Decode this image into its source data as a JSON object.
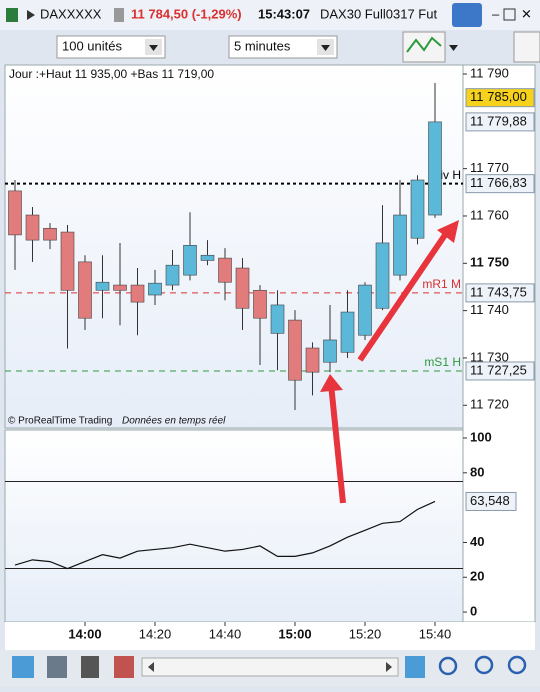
{
  "window": {
    "symbol": "DAXXXXX",
    "quote": "11 784,50 (-1,29%)",
    "time": "15:43:07",
    "contract": "DAX30 Full0317 Fut"
  },
  "toolbar": {
    "quantity": "100 unités",
    "period": "5 minutes"
  },
  "chart_header": "Jour :+Haut 11 935,00 +Bas 11 719,00",
  "footer": {
    "brand": "© ProRealTime Trading",
    "feed": "Données en temps réel"
  },
  "chart_data": [
    {
      "type": "candlestick",
      "categories": [
        null,
        null,
        null,
        null,
        "14:00",
        null,
        null,
        null,
        "14:20",
        null,
        null,
        null,
        "14:40",
        null,
        null,
        null,
        "15:00",
        null,
        null,
        null,
        "15:20",
        null,
        null,
        null,
        "15:40"
      ],
      "bold_categories": [
        4,
        16
      ],
      "open": [
        11765.3,
        11760.2,
        11757.4,
        11756.6,
        11750.3,
        11744.3,
        11745.4,
        11745.4,
        11743.3,
        11745.4,
        11747.5,
        11750.6,
        11751.1,
        11749,
        11744.3,
        11735.2,
        11738,
        11732.1,
        11729.1,
        11731.2,
        11734.8,
        11740.5,
        11747.5,
        11755.3,
        11760.2
      ],
      "high": [
        11767.6,
        11761.9,
        11758.5,
        11758.1,
        11751.7,
        11751.7,
        11754.3,
        11749,
        11748.6,
        11752.8,
        11760.8,
        11754.9,
        11753.2,
        11751.1,
        11745.4,
        11744.3,
        11740.1,
        11733.3,
        11741.2,
        11744.3,
        11746,
        11762.3,
        11767.6,
        11768.6,
        11788.1
      ],
      "low": [
        11748.6,
        11750.3,
        11753,
        11732,
        11735.9,
        11738.4,
        11736.9,
        11734.8,
        11741.2,
        11744.3,
        11746.4,
        11749.6,
        11742.2,
        11735.9,
        11728.5,
        11727.4,
        11719,
        11722.1,
        11727,
        11730,
        11733.8,
        11740.1,
        11746.4,
        11754,
        11759.6
      ],
      "close": [
        11756,
        11754.9,
        11754.9,
        11744.3,
        11738.4,
        11746,
        11744.3,
        11741.8,
        11745.8,
        11749.6,
        11753.8,
        11751.7,
        11746,
        11740.5,
        11738.4,
        11741.2,
        11725.3,
        11727,
        11733.8,
        11739.7,
        11745.4,
        11754.3,
        11760.2,
        11767.6,
        11779.88
      ],
      "up_color": "#5bb8d8",
      "down_color": "#e27c7c",
      "ylim": [
        11715.2,
        11791.9
      ],
      "yticks": [
        {
          "value": 11720,
          "label": "11 720"
        },
        {
          "value": 11730,
          "label": "11 730"
        },
        {
          "value": 11740,
          "label": "11 740"
        },
        {
          "value": 11750,
          "label": "11 750",
          "bold": true
        },
        {
          "value": 11760,
          "label": "11 760"
        },
        {
          "value": 11770,
          "label": "11 770"
        },
        {
          "value": 11790,
          "label": "11 790"
        }
      ],
      "levels": [
        {
          "name": "Piv H",
          "value": 11766.83,
          "label": "11 766,83",
          "color": "#000000",
          "dash": "3,3"
        },
        {
          "name": "mR1 M",
          "value": 11743.75,
          "label": "11 743,75",
          "color": "#d9302f",
          "dash": "6,5"
        },
        {
          "name": "mS1 H",
          "value": 11727.25,
          "label": "11 727,25",
          "color": "#2c9a3c",
          "dash": "6,5"
        }
      ],
      "price_labels": [
        {
          "value": 11785,
          "label": "11 785,00",
          "color": "#f6d21c"
        },
        {
          "value": 11779.88,
          "label": "11 779,88",
          "color": "#eef3fa"
        }
      ]
    },
    {
      "type": "line",
      "values": [
        27,
        30,
        29,
        25,
        29,
        33,
        31,
        35,
        36,
        37,
        39,
        37,
        35,
        36,
        38,
        32,
        32,
        34,
        38,
        43,
        47,
        51,
        52,
        59,
        63.548
      ],
      "value_labels": [
        null,
        null,
        null,
        null,
        null,
        null,
        null,
        null,
        null,
        null,
        null,
        null,
        null,
        null,
        null,
        null,
        null,
        null,
        null,
        null,
        null,
        null,
        null,
        null,
        "63,548"
      ],
      "color": "#111111",
      "ylim": [
        -5.7,
        104.6
      ],
      "yticks": [
        0,
        20,
        40,
        80,
        100
      ],
      "hlines": [
        75,
        25
      ]
    }
  ]
}
